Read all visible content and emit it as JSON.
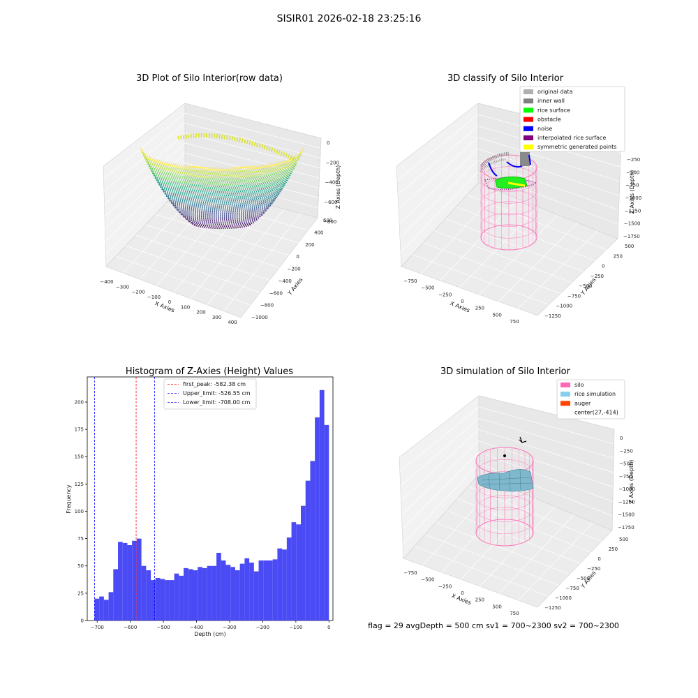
{
  "figure_title": "SISIR01 2026-02-18 23:25:16",
  "footer": "flag = 29  avgDepth = 500 cm  sv1 = 700~2300  sv2 = 700~2300",
  "colors": {
    "hist_bar": "#4b4bf5",
    "first_peak_line": "#ff0000",
    "limit_line": "#0000ff",
    "silo": "#ff69b4",
    "rice_simulation": "#87ceeb",
    "auger": "#ff4500",
    "original_data": "#b0b0b0",
    "inner_wall": "#808080",
    "rice_surface": "#00ff00",
    "obstacle": "#ff0000",
    "noise": "#0000ff",
    "interpolated_rice_surface": "#800080",
    "symmetric_points": "#ffff00"
  },
  "chart_data": [
    {
      "type": "scatter",
      "projection": "3d",
      "title": "3D Plot of Silo Interior(row data)",
      "xlabel": "X Axies",
      "ylabel": "Y Axies",
      "zlabel": "Z Axies (Depth)",
      "xticks": [
        "−400",
        "−300",
        "−200",
        "−100",
        "0",
        "100",
        "200",
        "300",
        "400"
      ],
      "yticks": [
        "−1000",
        "−800",
        "−600",
        "−400",
        "−200",
        "0",
        "200",
        "400",
        "600"
      ],
      "zticks": [
        "0",
        "−200",
        "−400",
        "−600",
        "−800"
      ],
      "xlim": [
        -430,
        430
      ],
      "ylim": [
        -1050,
        700
      ],
      "zlim": [
        -950,
        50
      ],
      "colormap": "viridis"
    },
    {
      "type": "scatter",
      "projection": "3d",
      "title": "3D classify of Silo Interior",
      "xlabel": "X Axies",
      "ylabel": "Y Axies",
      "zlabel": "Z Axies (Depth)",
      "xticks": [
        "−750",
        "−500",
        "−250",
        "0",
        "250",
        "500",
        "750"
      ],
      "yticks": [
        "−1250",
        "−1000",
        "−750",
        "−500",
        "−250",
        "0",
        "250",
        "500"
      ],
      "zticks": [
        "−250",
        "−500",
        "−750",
        "−1000",
        "−1250",
        "−1500",
        "−1750"
      ],
      "legend": [
        "original data",
        "inner wall",
        "rice surface",
        "obstacle",
        "noise",
        "interpolated rice surface",
        "symmetric generated points"
      ],
      "legend_loc": "upper right"
    },
    {
      "type": "bar",
      "title": "Histogram of Z-Axies (Height) Values",
      "xlabel": "Depth (cm)",
      "ylabel": "Frequency",
      "xlim": [
        -730,
        12
      ],
      "ylim": [
        0,
        223
      ],
      "xticks": [
        -700,
        -600,
        -500,
        -400,
        -300,
        -200,
        -100,
        0
      ],
      "yticks": [
        0,
        25,
        50,
        75,
        100,
        125,
        150,
        175,
        200
      ],
      "bin_start": -708,
      "bin_width": 14.16,
      "values": [
        20,
        22,
        19,
        26,
        47,
        72,
        71,
        69,
        73,
        75,
        50,
        46,
        37,
        39,
        38,
        37,
        37,
        43,
        41,
        48,
        47,
        46,
        49,
        48,
        50,
        50,
        62,
        55,
        51,
        49,
        46,
        52,
        57,
        53,
        45,
        55,
        55,
        55,
        56,
        66,
        65,
        76,
        90,
        88,
        105,
        128,
        146,
        186,
        211,
        179
      ],
      "vlines": [
        {
          "label": "first_peak: -582.38 cm",
          "x": -582.38,
          "color": "#ff0000"
        },
        {
          "label": "Upper_limit: -526.55 cm",
          "x": -526.55,
          "color": "#0000ff"
        },
        {
          "label": "Lower_limit: -708.00 cm",
          "x": -708.0,
          "color": "#0000ff"
        }
      ],
      "legend_loc": "upper center"
    },
    {
      "type": "scatter",
      "projection": "3d",
      "title": "3D simulation of Silo Interior",
      "xlabel": "X Axies",
      "ylabel": "Y Axies",
      "zlabel": "Z Axies (Depth)",
      "xticks": [
        "−750",
        "−500",
        "−250",
        "0",
        "250",
        "500",
        "750"
      ],
      "yticks": [
        "−1250",
        "−1000",
        "−750",
        "−500",
        "−250",
        "0",
        "250",
        "500"
      ],
      "zticks": [
        "0",
        "−250",
        "−500",
        "−750",
        "−1000",
        "−1250",
        "−1500",
        "−1750"
      ],
      "legend": [
        "silo",
        "rice simulation",
        "auger",
        "center(27,-414)"
      ],
      "legend_loc": "upper right"
    }
  ]
}
